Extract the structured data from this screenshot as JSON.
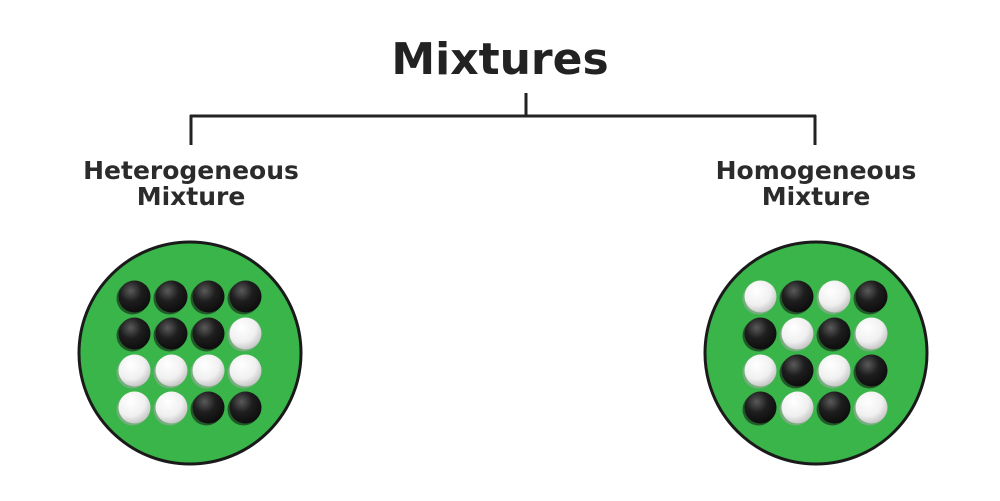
{
  "title": "Mixtures",
  "colors": {
    "circle_fill": "#3ab54a",
    "circle_border": "#1a1a1a",
    "dark_particle": "#1c1c1c",
    "light_particle": "#f2f2f2",
    "line": "#222222"
  },
  "branches": [
    {
      "label_line1": "Heterogeneous",
      "label_line2": "Mixture",
      "grid": [
        [
          "dark",
          "dark",
          "dark",
          "dark"
        ],
        [
          "dark",
          "dark",
          "dark",
          "light"
        ],
        [
          "light",
          "light",
          "light",
          "light"
        ],
        [
          "light",
          "light",
          "dark",
          "dark"
        ]
      ]
    },
    {
      "label_line1": "Homogeneous",
      "label_line2": "Mixture",
      "grid": [
        [
          "light",
          "dark",
          "light",
          "dark"
        ],
        [
          "dark",
          "light",
          "dark",
          "light"
        ],
        [
          "light",
          "dark",
          "light",
          "dark"
        ],
        [
          "dark",
          "light",
          "dark",
          "light"
        ]
      ]
    }
  ]
}
